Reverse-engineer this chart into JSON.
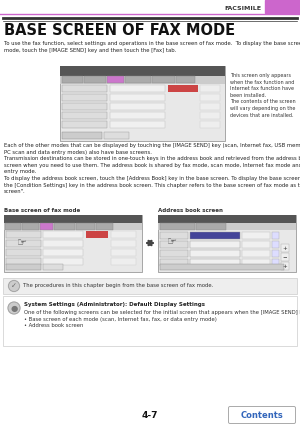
{
  "page_num": "4-7",
  "header_label": "FACSIMILE",
  "header_bar_color": "#cc66cc",
  "header_line_color": "#cc66cc",
  "title": "BASE SCREEN OF FAX MODE",
  "bg_color": "#ffffff",
  "body_text_1": "To use the fax function, select settings and operations in the base screen of fax mode.  To display the base screen of fax\nmode, touch the [IMAGE SEND] key and then touch the [Fax] tab.",
  "side_note": "This screen only appears\nwhen the fax function and\nInternet fax function have\nbeen installed.\nThe contents of the screen\nwill vary depending on the\ndevices that are installed.",
  "body_text_2": "Each of the other modes that can be displayed by touching the [IMAGE SEND] key (scan, Internet fax, USB memory,\nPC scan and data entry modes) also have base screens.\nTransmission destinations can be stored in one-touch keys in the address book and retrieved from the address book\nscreen when you need to use them. The address book is shared by fax mode, scan mode, Internet fax mode and data\nentry mode.\nTo display the address book screen, touch the [Address Book] key in the base screen. To display the base screen, touch\nthe [Condition Settings] key in the address book screen. This chapter refers to the base screen of fax mode as the \"base\nscreen\".",
  "label_base": "Base screen of fax mode",
  "label_address": "Address book screen",
  "note_text": "The procedures in this chapter begin from the base screen of fax mode.",
  "settings_title": "System Settings (Administrator): Default Display Settings",
  "settings_text": "One of the following screens can be selected for the initial screen that appears when the [IMAGE SEND] key is touched.\n• Base screen of each mode (scan, Internet fax, fax, or data entry mode)\n• Address book screen",
  "contents_label": "Contents",
  "contents_btn_color": "#3366bb",
  "contents_btn_border": "#aaaaaa"
}
